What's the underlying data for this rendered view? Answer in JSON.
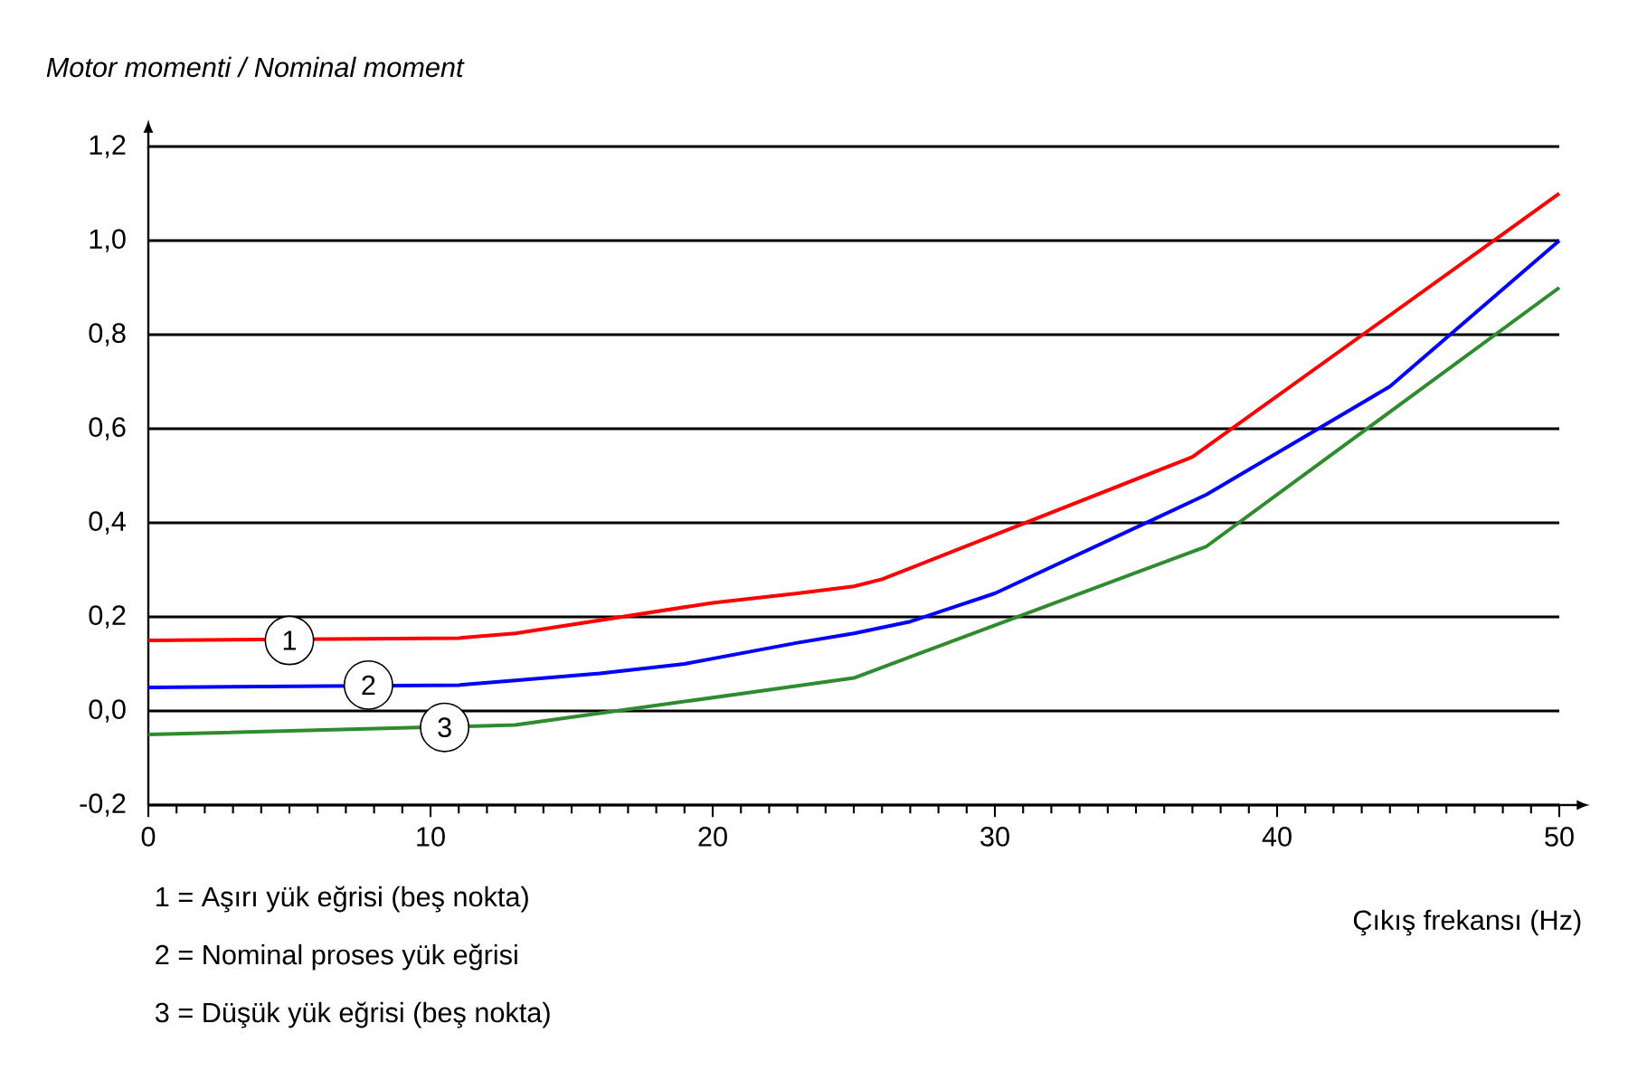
{
  "chart_data": {
    "type": "line",
    "xlabel": "Çıkış frekansı (Hz)",
    "ylabel": "Motor momenti / Nominal moment",
    "series": [
      {
        "color": "#ff0000",
        "x": [
          0,
          11,
          13,
          20,
          23,
          25,
          26,
          37,
          50
        ],
        "values": [
          0.15,
          0.155,
          0.165,
          0.23,
          0.25,
          0.265,
          0.28,
          0.54,
          1.1
        ]
      },
      {
        "color": "#0000ff",
        "x": [
          0,
          11,
          13,
          16,
          19,
          23,
          25,
          27,
          30,
          37.5,
          44,
          50
        ],
        "values": [
          0.05,
          0.055,
          0.065,
          0.08,
          0.1,
          0.145,
          0.165,
          0.19,
          0.25,
          0.46,
          0.69,
          1.0
        ]
      },
      {
        "color": "#2e8b2e",
        "x": [
          0,
          13,
          25,
          37.5,
          50
        ],
        "values": [
          -0.05,
          -0.03,
          0.07,
          0.35,
          0.9
        ]
      }
    ],
    "xlim": [
      0,
      50
    ],
    "xticks": [
      0,
      10,
      20,
      30,
      40,
      50
    ],
    "ylim": [
      -0.2,
      1.2
    ],
    "yticks": [
      {
        "value": -0.2,
        "label": "-0,2"
      },
      {
        "value": 0,
        "label": "0,0"
      },
      {
        "value": 0.2,
        "label": "0,2"
      },
      {
        "value": 0.4,
        "label": "0,4"
      },
      {
        "value": 0.6,
        "label": "0,6"
      },
      {
        "value": 0.8,
        "label": "0,8"
      },
      {
        "value": 1.0,
        "label": "1,0"
      },
      {
        "value": 1.2,
        "label": "1,2"
      }
    ],
    "grid": "y",
    "annotations": [
      {
        "text": "1",
        "x": 5,
        "y": 0.15
      },
      {
        "text": "2",
        "x": 7.8,
        "y": 0.055
      },
      {
        "text": "3",
        "x": 10.5,
        "y": -0.035
      },
      "1 = Aşırı yük eğrisi (beş nokta)",
      "2 = Nominal proses yük eğrisi",
      "3 = Düşük yük eğrisi (beş nokta)"
    ]
  }
}
